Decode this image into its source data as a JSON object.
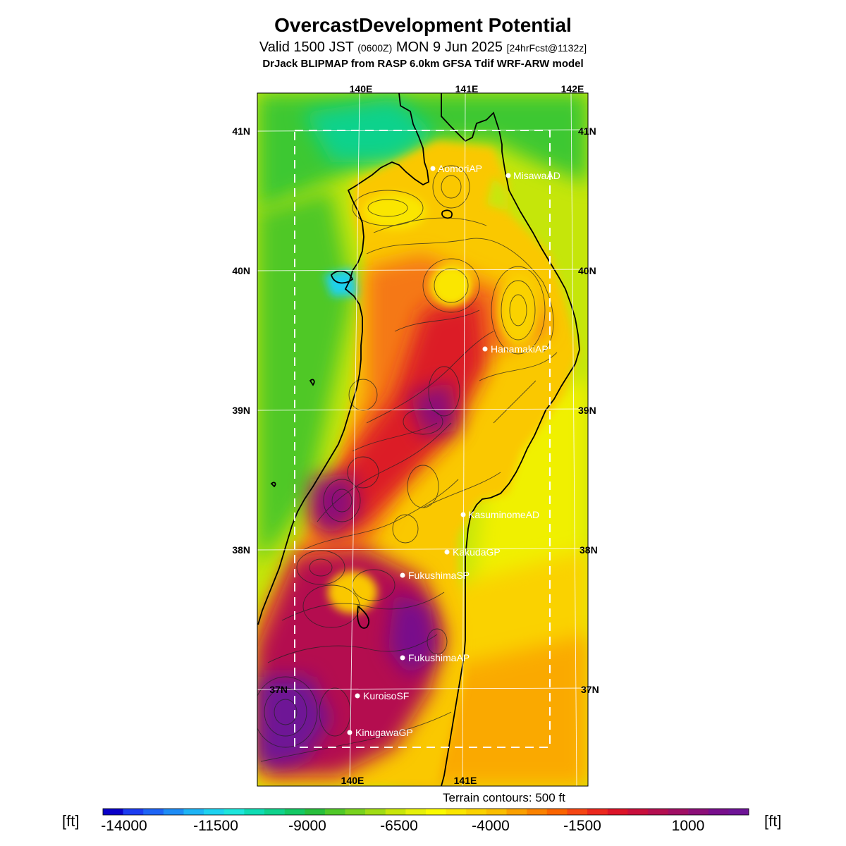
{
  "header": {
    "title": "OvercastDevelopment Potential",
    "valid_prefix": "Valid 1500 JST",
    "valid_utc": "(0600Z)",
    "valid_date": "MON 9 Jun 2025",
    "forecast": "[24hrFcst@1132z]",
    "model_line": "DrJack BLIPMAP from RASP 6.0km GFSA Tdif WRF-ARW model"
  },
  "map": {
    "lon_labels_top": [
      "140E",
      "141E",
      "142E"
    ],
    "lon_labels_bottom": [
      "140E",
      "141E"
    ],
    "lat_labels_left": [
      "41N",
      "40N",
      "39N",
      "38N",
      "37N"
    ],
    "lat_labels_right": [
      "41N",
      "40N",
      "39N",
      "38N",
      "37N"
    ],
    "stations": [
      {
        "name": "AomoriAP"
      },
      {
        "name": "MisawaAD"
      },
      {
        "name": "HanamakiAP"
      },
      {
        "name": "KasuminomeAD"
      },
      {
        "name": "KakudaGP"
      },
      {
        "name": "FukushimaSP"
      },
      {
        "name": "FukushimaAP"
      },
      {
        "name": "KuroisoSF"
      },
      {
        "name": "KinugawaGP"
      }
    ],
    "terrain_note": "Terrain contours: 500 ft"
  },
  "colorbar": {
    "unit_left": "[ft]",
    "unit_right": "[ft]",
    "labels": [
      "-14000",
      "-11500",
      "-9000",
      "-6500",
      "-4000",
      "-1500",
      "1000"
    ],
    "colors": [
      "#0a00c8",
      "#1c3cf0",
      "#1e64f5",
      "#1e8cf5",
      "#1eb4f5",
      "#1ed2f0",
      "#1ee6dc",
      "#10dcb4",
      "#10d28c",
      "#14c864",
      "#28be3c",
      "#50c828",
      "#78d21e",
      "#a0dc14",
      "#c8e60a",
      "#e6f00a",
      "#fafa00",
      "#fae600",
      "#fad200",
      "#fabe00",
      "#faa000",
      "#fa8200",
      "#fa6400",
      "#f54614",
      "#eb281e",
      "#dc1428",
      "#c80f3c",
      "#b40f50",
      "#a00f64",
      "#8c0f78",
      "#780f8c",
      "#6e1496"
    ]
  }
}
